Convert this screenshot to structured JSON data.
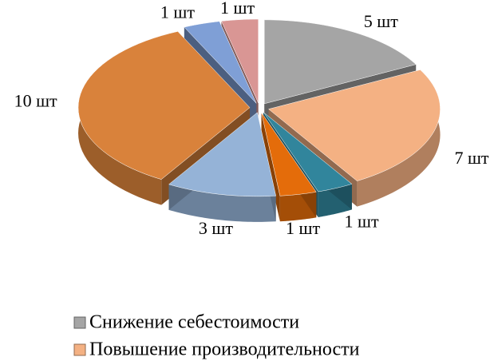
{
  "chart_data": {
    "type": "pie",
    "categories": [
      "Снижение себестоимости",
      "Повышение производительности",
      null,
      null,
      null,
      null,
      null,
      null
    ],
    "values": [
      5,
      7,
      1,
      1,
      3,
      10,
      1,
      1
    ],
    "value_labels": [
      "5 шт",
      "7 шт",
      "1 шт",
      "1 шт",
      "3 шт",
      "10 шт",
      "1 шт",
      "1 шт"
    ],
    "colors": [
      "#a5a5a5",
      "#f4b183",
      "#31859c",
      "#e46c0a",
      "#95b3d7",
      "#d9823b",
      "#7f9fd6",
      "#d99694"
    ],
    "legend": "bottom"
  }
}
